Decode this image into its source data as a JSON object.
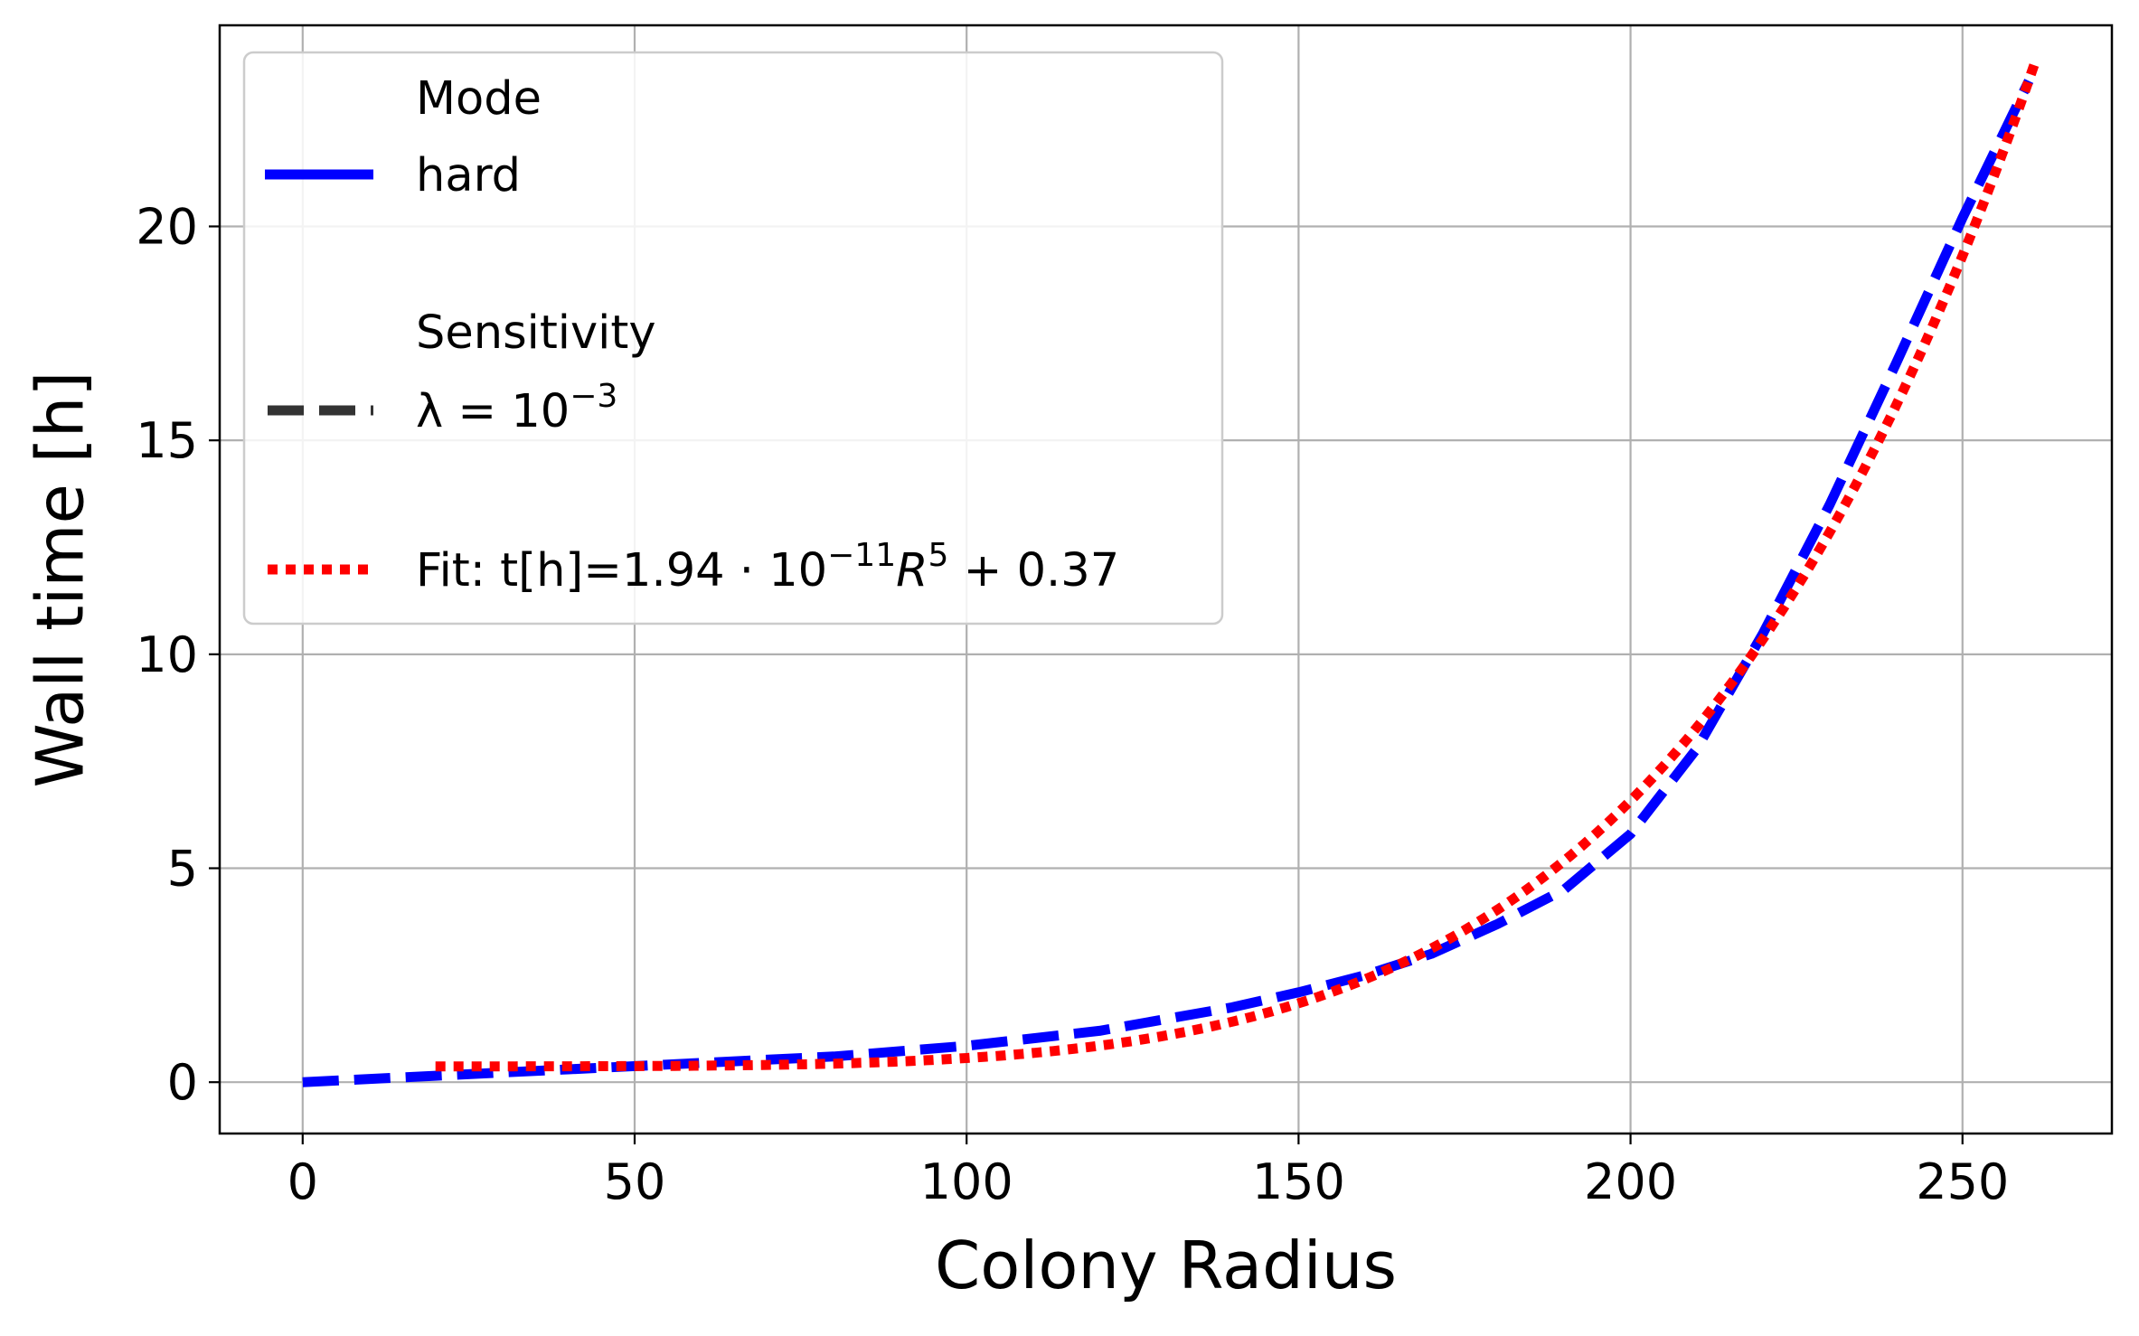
{
  "chart_data": {
    "type": "line",
    "xlabel": "Colony Radius",
    "ylabel": "Wall time [h]",
    "xlim": [
      -12.5,
      272.5
    ],
    "ylim": [
      -1.2,
      24.7
    ],
    "xticks": [
      0,
      50,
      100,
      150,
      200,
      250
    ],
    "xtick_labels": [
      "0",
      "50",
      "100",
      "150",
      "200",
      "250"
    ],
    "yticks": [
      0,
      5,
      10,
      15,
      20
    ],
    "ytick_labels": [
      "0",
      "5",
      "10",
      "15",
      "20"
    ],
    "grid": true,
    "legend": {
      "placement": "top-left",
      "mode_title": "Mode",
      "mode_entry": "hard",
      "sensitivity_title": "Sensitivity",
      "sensitivity_entry_base": "λ = 10",
      "sensitivity_entry_exp": "−3",
      "fit_entry": {
        "prefix": "Fit: t[h]=1.94 · 10",
        "exp1": "−11",
        "mid": "R",
        "exp2": "5",
        "suffix": " + 0.37"
      }
    },
    "series": [
      {
        "name": "hard, λ = 10⁻³",
        "color": "#0000ff",
        "style": "dashed",
        "x": [
          0,
          20,
          40,
          60,
          80,
          100,
          120,
          140,
          150,
          160,
          170,
          180,
          190,
          200,
          210,
          220,
          230,
          240,
          250,
          260
        ],
        "y": [
          0.0,
          0.15,
          0.3,
          0.45,
          0.6,
          0.85,
          1.2,
          1.75,
          2.1,
          2.5,
          3.0,
          3.7,
          4.5,
          5.8,
          7.8,
          10.5,
          13.5,
          16.8,
          20.2,
          23.4
        ]
      },
      {
        "name": "Fit: t[h]=1.94·10⁻¹¹R⁵+0.37",
        "color": "#ff0000",
        "style": "dotted",
        "fit": {
          "a": 1.94e-11,
          "power": 5,
          "b": 0.37,
          "x_start": 20,
          "x_end": 261
        }
      }
    ]
  }
}
